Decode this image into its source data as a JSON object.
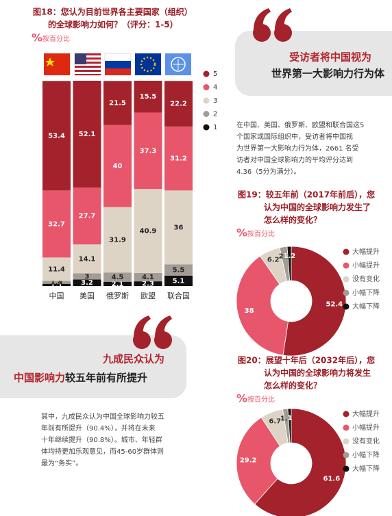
{
  "chart_data": [
    {
      "type": "stacked-bar",
      "title": [
        "图18：您认为目前世界各主要国家（组织）",
        "的全球影响力如何？（评分：1-5）"
      ],
      "unit_symbol": "%",
      "subtitle": "按百分比",
      "categories": [
        "中国",
        "美国",
        "俄罗斯",
        "欧盟",
        "联合国"
      ],
      "series": [
        {
          "name": "5",
          "color": "#a3222b",
          "values": [
            53.4,
            52.1,
            21.5,
            15.5,
            22.2
          ]
        },
        {
          "name": "4",
          "color": "#e8566b",
          "values": [
            32.7,
            27.7,
            40,
            37.3,
            31.2
          ]
        },
        {
          "name": "3",
          "color": "#ded4c6",
          "values": [
            11.4,
            14.1,
            31.9,
            40.9,
            36
          ]
        },
        {
          "name": "2",
          "color": "#a39c95",
          "values": [
            1.4,
            3,
            4.5,
            4.1,
            5.5
          ]
        },
        {
          "name": "1",
          "color": "#111111",
          "values": [
            1.1,
            3.2,
            2.1,
            2.3,
            5.1
          ]
        }
      ]
    },
    {
      "type": "donut",
      "title": [
        "图19：较五年前（2017年前后），您",
        "认为中国的全球影响力发生了",
        "怎么样的变化？"
      ],
      "unit_symbol": "%",
      "subtitle": "按百分比",
      "categories": [
        "大幅提升",
        "小幅提升",
        "没有变化",
        "小幅下降",
        "大幅下降"
      ],
      "values": [
        52.4,
        38,
        6.2,
        2.2,
        1.2
      ],
      "colors": [
        "#a3222b",
        "#e8566b",
        "#ded4c6",
        "#a39c95",
        "#111111"
      ]
    },
    {
      "type": "donut",
      "title": [
        "图20：展望十年后（2032年后），您",
        "认为中国的全球影响力将发生",
        "怎么样的变化？"
      ],
      "unit_symbol": "%",
      "subtitle": "按百分比",
      "categories": [
        "大幅提升",
        "小幅提升",
        "没有变化",
        "小幅下降",
        "大幅下降"
      ],
      "values": [
        61.6,
        29.2,
        6.7,
        1.5,
        1
      ],
      "colors": [
        "#a3222b",
        "#e8566b",
        "#ded4c6",
        "#a39c95",
        "#111111"
      ]
    }
  ],
  "quote1": {
    "line1": "受访者将中国视为",
    "line2": "世界第一大影响力行为体"
  },
  "quote2": {
    "line1": "九成民众认为",
    "line2_highlight": "中国影响力",
    "line2_rest": "较五年前有所提升"
  },
  "paragraph1": [
    "在中国、美国、俄罗斯、欧盟和联合国这5",
    "个国家或国际组织中，受访者将中国视",
    "为世界第一大影响力行为体，2661 名受",
    "访者对中国全球影响力的平均评分达到",
    "4.36（5分为满分）。"
  ],
  "paragraph2": [
    "其中，九成民众认为中国全球影响力较五",
    "年前有所提升（90.4%），并将在未来",
    "十年继续提升（90.8%）。城市、年轻群",
    "体均持更加乐观意见，而45-60岁群体则",
    "最为“务实”。"
  ]
}
